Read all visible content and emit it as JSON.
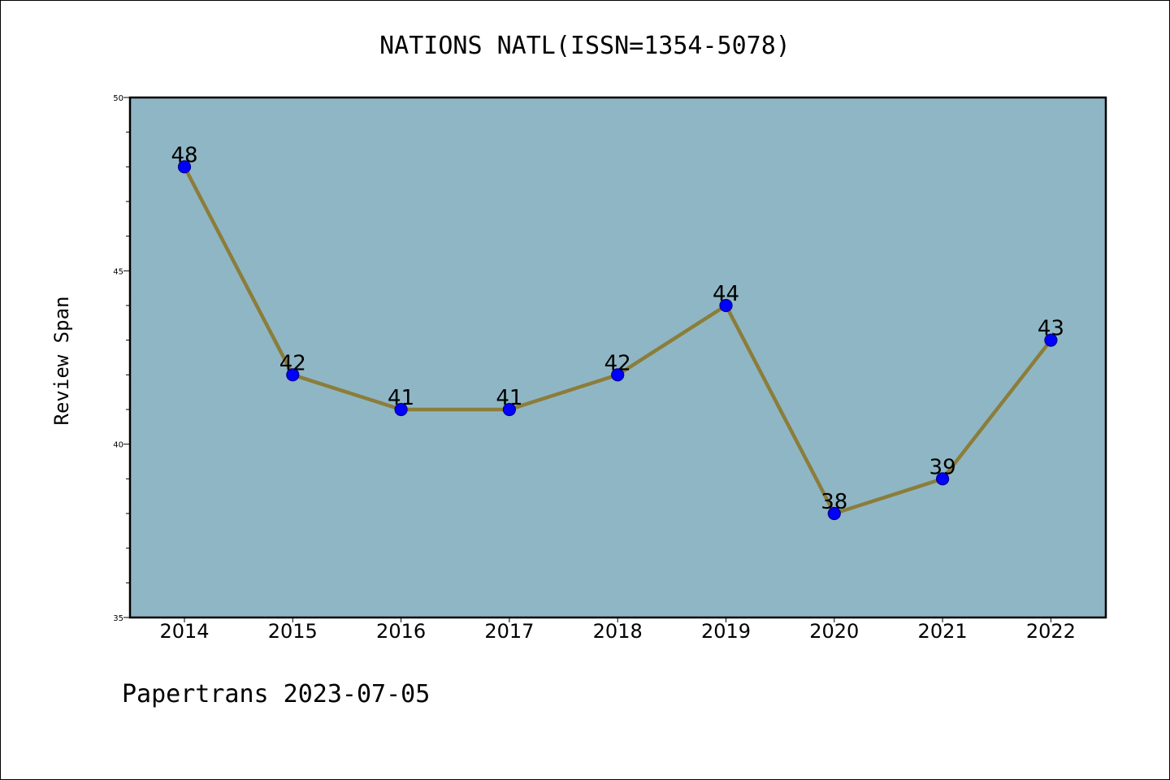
{
  "chart_data": {
    "type": "line",
    "title": "NATIONS NATL(ISSN=1354-5078)",
    "xlabel": "",
    "ylabel": "Review Span",
    "categories": [
      "2014",
      "2015",
      "2016",
      "2017",
      "2018",
      "2019",
      "2020",
      "2021",
      "2022"
    ],
    "series": [
      {
        "values": [
          48,
          42,
          41,
          41,
          42,
          44,
          38,
          39,
          43
        ]
      }
    ],
    "ylim": [
      35,
      50
    ],
    "yticks": [
      "35",
      "40",
      "45",
      "50"
    ],
    "ytick_values": [
      35,
      40,
      45,
      50
    ],
    "y_minor_step": 1,
    "data_labels": [
      "48",
      "42",
      "41",
      "41",
      "42",
      "44",
      "38",
      "39",
      "43"
    ],
    "grid": false,
    "legend": "none",
    "colors": {
      "plot_background": "#8fb6c4",
      "line": "#8b7d3a",
      "marker": "#0000ff",
      "marker_edge": "#00008b"
    }
  },
  "footer": "Papertrans 2023-07-05"
}
